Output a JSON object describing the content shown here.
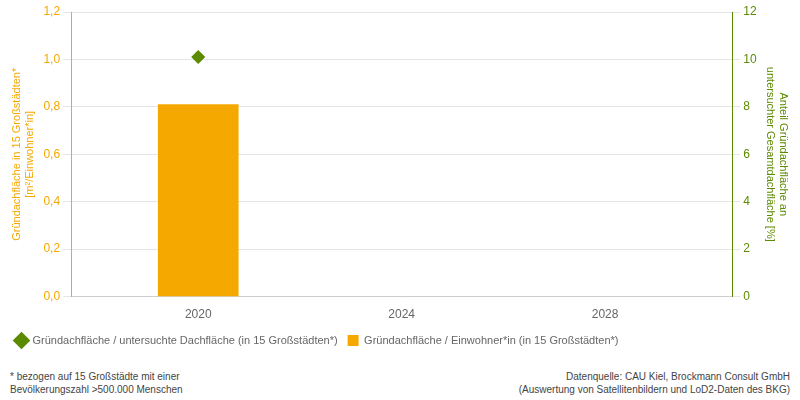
{
  "chart_data": {
    "type": "bar",
    "x": [
      2020
    ],
    "series": [
      {
        "name": "Gründachfläche / Einwohner*in (in 15 Großstädten*)",
        "type": "bar",
        "color": "#F5A800",
        "values": [
          0.81
        ]
      },
      {
        "name": "Gründachfläche / untersuchte Dachfläche (in 15 Großstädten*)",
        "type": "line",
        "color": "#5C8A00",
        "marker": "diamond",
        "axis": "y2",
        "values": [
          10.1
        ]
      }
    ],
    "xlim": [
      2017.5,
      2030.5
    ],
    "xticks": [
      2020,
      2024,
      2028
    ],
    "ylim": [
      0.0,
      1.2
    ],
    "yticks": [
      {
        "value": 0.0,
        "label": "0,0"
      },
      {
        "value": 0.2,
        "label": "0,2"
      },
      {
        "value": 0.4,
        "label": "0,4"
      },
      {
        "value": 0.6,
        "label": "0,6"
      },
      {
        "value": 0.8,
        "label": "0,8"
      },
      {
        "value": 1.0,
        "label": "1,0"
      },
      {
        "value": 1.2,
        "label": "1,2"
      }
    ],
    "y2lim": [
      0,
      12
    ],
    "y2ticks": [
      0,
      2,
      4,
      6,
      8,
      10,
      12
    ],
    "y_label": [
      "Gründachfläche in 15 Großstädten*",
      "[m²/Einwohner*in]"
    ],
    "y2_label": [
      "Anteil Gründachfläche an",
      "untersuchter Gesamtdachfläche [%]"
    ],
    "annotations": [
      [
        "* bezogen auf 15 Großstädte mit einer",
        "Bevölkerungszahl >500.000 Menschen"
      ],
      [
        "Datenquelle: CAU Kiel, Brockmann Consult GmbH",
        "(Auswertung von Satellitenbildern und LoD2-Daten des BKG)"
      ]
    ],
    "grid": true,
    "legend": "bottom"
  }
}
